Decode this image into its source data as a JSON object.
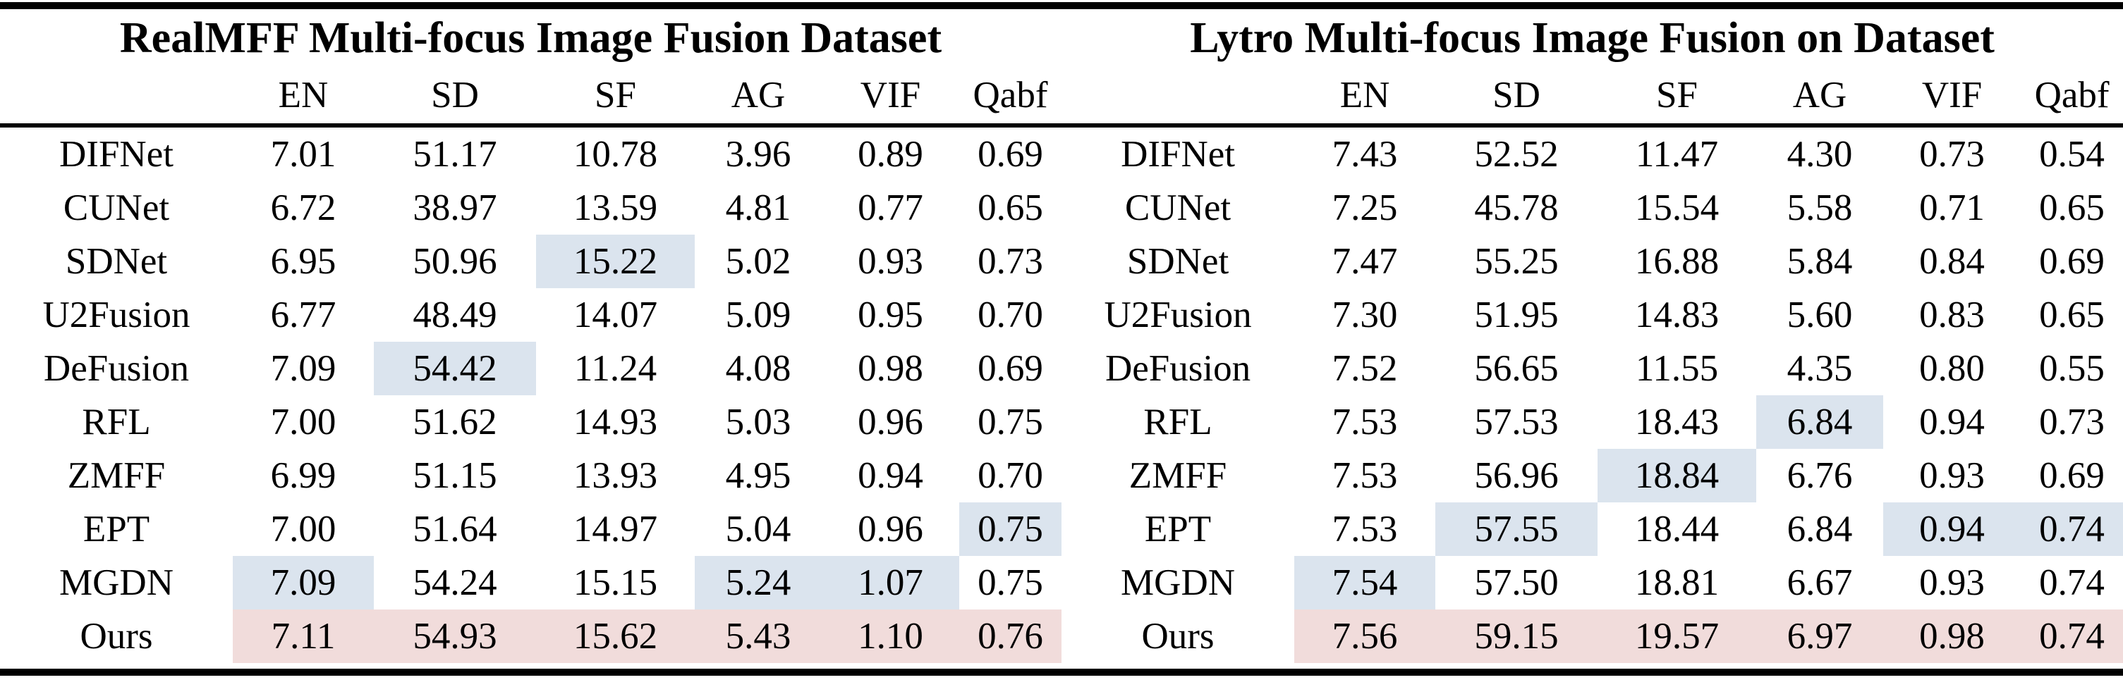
{
  "figure": {
    "colors": {
      "background": "#ffffff",
      "text": "#000000",
      "rule": "#000000",
      "second_best_highlight": "#dbe4ee",
      "best_highlight": "#f1dcdb"
    },
    "column_headers": [
      "EN",
      "SD",
      "SF",
      "AG",
      "VIF",
      "Qabf"
    ],
    "tables": [
      {
        "title": "RealMFF Multi-focus Image Fusion Dataset",
        "rows": [
          {
            "method": "DIFNet",
            "values": [
              "7.01",
              "51.17",
              "10.78",
              "3.96",
              "0.89",
              "0.69"
            ],
            "highlights": [
              "",
              "",
              "",
              "",
              "",
              ""
            ]
          },
          {
            "method": "CUNet",
            "values": [
              "6.72",
              "38.97",
              "13.59",
              "4.81",
              "0.77",
              "0.65"
            ],
            "highlights": [
              "",
              "",
              "",
              "",
              "",
              ""
            ]
          },
          {
            "method": "SDNet",
            "values": [
              "6.95",
              "50.96",
              "15.22",
              "5.02",
              "0.93",
              "0.73"
            ],
            "highlights": [
              "",
              "",
              "second",
              "",
              "",
              ""
            ]
          },
          {
            "method": "U2Fusion",
            "values": [
              "6.77",
              "48.49",
              "14.07",
              "5.09",
              "0.95",
              "0.70"
            ],
            "highlights": [
              "",
              "",
              "",
              "",
              "",
              ""
            ]
          },
          {
            "method": "DeFusion",
            "values": [
              "7.09",
              "54.42",
              "11.24",
              "4.08",
              "0.98",
              "0.69"
            ],
            "highlights": [
              "",
              "second",
              "",
              "",
              "",
              ""
            ]
          },
          {
            "method": "RFL",
            "values": [
              "7.00",
              "51.62",
              "14.93",
              "5.03",
              "0.96",
              "0.75"
            ],
            "highlights": [
              "",
              "",
              "",
              "",
              "",
              ""
            ]
          },
          {
            "method": "ZMFF",
            "values": [
              "6.99",
              "51.15",
              "13.93",
              "4.95",
              "0.94",
              "0.70"
            ],
            "highlights": [
              "",
              "",
              "",
              "",
              "",
              ""
            ]
          },
          {
            "method": "EPT",
            "values": [
              "7.00",
              "51.64",
              "14.97",
              "5.04",
              "0.96",
              "0.75"
            ],
            "highlights": [
              "",
              "",
              "",
              "",
              "",
              "second"
            ]
          },
          {
            "method": "MGDN",
            "values": [
              "7.09",
              "54.24",
              "15.15",
              "5.24",
              "1.07",
              "0.75"
            ],
            "highlights": [
              "second",
              "",
              "",
              "second",
              "second",
              ""
            ]
          },
          {
            "method": "Ours",
            "values": [
              "7.11",
              "54.93",
              "15.62",
              "5.43",
              "1.10",
              "0.76"
            ],
            "highlights": [
              "best",
              "best",
              "best",
              "best",
              "best",
              "best"
            ]
          }
        ]
      },
      {
        "title": "Lytro Multi-focus Image Fusion on Dataset",
        "rows": [
          {
            "method": "DIFNet",
            "values": [
              "7.43",
              "52.52",
              "11.47",
              "4.30",
              "0.73",
              "0.54"
            ],
            "highlights": [
              "",
              "",
              "",
              "",
              "",
              ""
            ]
          },
          {
            "method": "CUNet",
            "values": [
              "7.25",
              "45.78",
              "15.54",
              "5.58",
              "0.71",
              "0.65"
            ],
            "highlights": [
              "",
              "",
              "",
              "",
              "",
              ""
            ]
          },
          {
            "method": "SDNet",
            "values": [
              "7.47",
              "55.25",
              "16.88",
              "5.84",
              "0.84",
              "0.69"
            ],
            "highlights": [
              "",
              "",
              "",
              "",
              "",
              ""
            ]
          },
          {
            "method": "U2Fusion",
            "values": [
              "7.30",
              "51.95",
              "14.83",
              "5.60",
              "0.83",
              "0.65"
            ],
            "highlights": [
              "",
              "",
              "",
              "",
              "",
              ""
            ]
          },
          {
            "method": "DeFusion",
            "values": [
              "7.52",
              "56.65",
              "11.55",
              "4.35",
              "0.80",
              "0.55"
            ],
            "highlights": [
              "",
              "",
              "",
              "",
              "",
              ""
            ]
          },
          {
            "method": "RFL",
            "values": [
              "7.53",
              "57.53",
              "18.43",
              "6.84",
              "0.94",
              "0.73"
            ],
            "highlights": [
              "",
              "",
              "",
              "second",
              "",
              ""
            ]
          },
          {
            "method": "ZMFF",
            "values": [
              "7.53",
              "56.96",
              "18.84",
              "6.76",
              "0.93",
              "0.69"
            ],
            "highlights": [
              "",
              "",
              "second",
              "",
              "",
              ""
            ]
          },
          {
            "method": "EPT",
            "values": [
              "7.53",
              "57.55",
              "18.44",
              "6.84",
              "0.94",
              "0.74"
            ],
            "highlights": [
              "",
              "second",
              "",
              "",
              "second",
              "second"
            ]
          },
          {
            "method": "MGDN",
            "values": [
              "7.54",
              "57.50",
              "18.81",
              "6.67",
              "0.93",
              "0.74"
            ],
            "highlights": [
              "second",
              "",
              "",
              "",
              "",
              ""
            ]
          },
          {
            "method": "Ours",
            "values": [
              "7.56",
              "59.15",
              "19.57",
              "6.97",
              "0.98",
              "0.74"
            ],
            "highlights": [
              "best",
              "best",
              "best",
              "best",
              "best",
              "best"
            ]
          }
        ]
      }
    ]
  }
}
